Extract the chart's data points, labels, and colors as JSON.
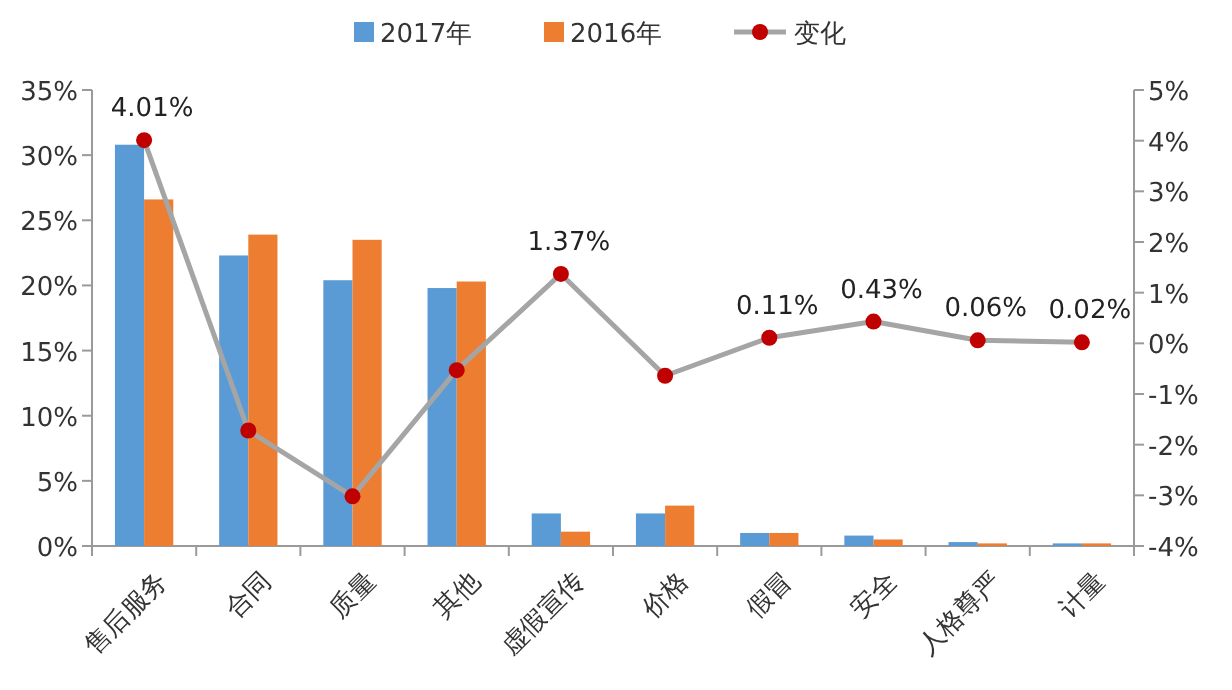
{
  "chart_data": {
    "type": "bar",
    "categories": [
      "售后服务",
      "合同",
      "质量",
      "其他",
      "虚假宣传",
      "价格",
      "假冒",
      "安全",
      "人格尊严",
      "计量"
    ],
    "series": [
      {
        "name": "2017年",
        "color": "#5b9bd5",
        "values": [
          30.8,
          22.3,
          20.4,
          19.8,
          2.5,
          2.5,
          1.0,
          0.8,
          0.3,
          0.2
        ]
      },
      {
        "name": "2016年",
        "color": "#ed7d31",
        "values": [
          26.6,
          23.9,
          23.5,
          20.3,
          1.1,
          3.1,
          1.0,
          0.5,
          0.2,
          0.2
        ]
      },
      {
        "name": "变化",
        "type": "line",
        "axis": "y2",
        "color": "#a5a5a5",
        "colors": [
          "#c00000",
          "#c00000",
          "#c00000",
          "#c00000",
          "#c00000",
          "#c00000",
          "#c00000",
          "#c00000",
          "#c00000",
          "#c00000"
        ],
        "marker": "circle",
        "values": [
          4.01,
          -1.72,
          -3.02,
          -0.53,
          1.37,
          -0.64,
          0.11,
          0.43,
          0.06,
          0.02
        ],
        "value_labels": [
          "4.01%",
          null,
          null,
          null,
          "1.37%",
          null,
          "0.11%",
          "0.43%",
          "0.06%",
          "0.02%"
        ]
      }
    ],
    "ylim": [
      0,
      35
    ],
    "yticks": [
      {
        "value": 0,
        "label": "0%"
      },
      {
        "value": 5,
        "label": "5%"
      },
      {
        "value": 10,
        "label": "10%"
      },
      {
        "value": 15,
        "label": "15%"
      },
      {
        "value": 20,
        "label": "20%"
      },
      {
        "value": 25,
        "label": "25%"
      },
      {
        "value": 30,
        "label": "30%"
      },
      {
        "value": 35,
        "label": "35%"
      }
    ],
    "y2lim": [
      -4,
      5
    ],
    "y2ticks": [
      {
        "value": -4,
        "label": "-4%"
      },
      {
        "value": -3,
        "label": "-3%"
      },
      {
        "value": -2,
        "label": "-2%"
      },
      {
        "value": -1,
        "label": "-1%"
      },
      {
        "value": 0,
        "label": "0%"
      },
      {
        "value": 1,
        "label": "1%"
      },
      {
        "value": 2,
        "label": "2%"
      },
      {
        "value": 3,
        "label": "3%"
      },
      {
        "value": 4,
        "label": "4%"
      },
      {
        "value": 5,
        "label": "5%"
      }
    ],
    "legend": "top",
    "grid": false
  }
}
